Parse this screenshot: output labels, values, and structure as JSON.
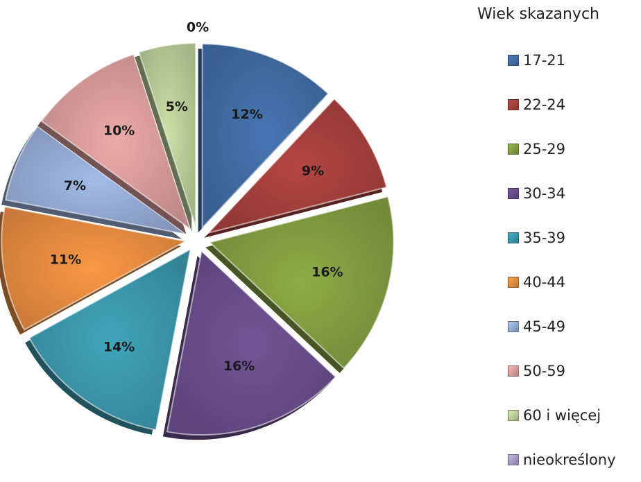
{
  "chart_data": {
    "type": "pie",
    "legend_title": "Wiek skazanych",
    "legend_position": "right",
    "categories": [
      "17-21",
      "22-24",
      "25-29",
      "30-34",
      "35-39",
      "40-44",
      "45-49",
      "50-59",
      "60 i więcej",
      "nieokreślony"
    ],
    "values": [
      12,
      9,
      16,
      16,
      14,
      11,
      7,
      10,
      5,
      0
    ],
    "data_labels": [
      "12%",
      "9%",
      "16%",
      "16%",
      "14%",
      "11%",
      "7%",
      "10%",
      "5%",
      "0%"
    ],
    "colors": [
      "#3f69a0",
      "#a13e3b",
      "#7f9a3f",
      "#674b87",
      "#3a93a8",
      "#e0883e",
      "#91a7cf",
      "#d39896",
      "#b5c995",
      "#a697c1"
    ],
    "exploded": true
  }
}
